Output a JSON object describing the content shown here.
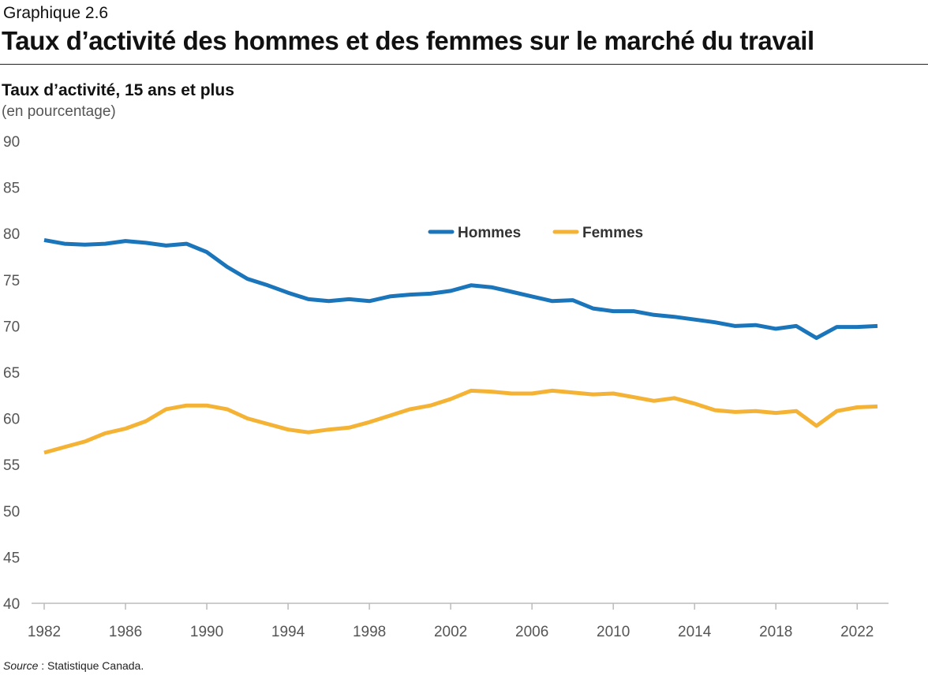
{
  "header": {
    "kicker": "Graphique 2.6",
    "title": "Taux d’activité des hommes et des femmes sur le marché du travail"
  },
  "subtitle": "Taux d’activité, 15 ans et plus",
  "unit": "(en pourcentage)",
  "source": {
    "label": "Source",
    "separator": " : ",
    "text": "Statistique Canada."
  },
  "colors": {
    "hommes": "#1b75bb",
    "femmes": "#f5b335",
    "axis": "#bbbbbb",
    "tick_text": "#555555",
    "legend_text": "#333333"
  },
  "chart_data": {
    "type": "line",
    "title": "Taux d’activité des hommes et des femmes sur le marché du travail",
    "ylabel": "Taux d’activité, 15 ans et plus (en pourcentage)",
    "xlabel": "",
    "ylim": [
      40,
      90
    ],
    "yticks": [
      40,
      45,
      50,
      55,
      60,
      65,
      70,
      75,
      80,
      85,
      90
    ],
    "xlim": [
      1982,
      2023
    ],
    "xticks": [
      1982,
      1986,
      1990,
      1994,
      1998,
      2002,
      2006,
      2010,
      2014,
      2018,
      2022
    ],
    "grid": false,
    "legend_position": "top-center",
    "x": [
      1982,
      1983,
      1984,
      1985,
      1986,
      1987,
      1988,
      1989,
      1990,
      1991,
      1992,
      1993,
      1994,
      1995,
      1996,
      1997,
      1998,
      1999,
      2000,
      2001,
      2002,
      2003,
      2004,
      2005,
      2006,
      2007,
      2008,
      2009,
      2010,
      2011,
      2012,
      2013,
      2014,
      2015,
      2016,
      2017,
      2018,
      2019,
      2020,
      2021,
      2022,
      2023
    ],
    "series": [
      {
        "name": "Hommes",
        "color": "#1b75bb",
        "values": [
          79.3,
          78.9,
          78.8,
          78.9,
          79.2,
          79.0,
          78.7,
          78.9,
          78.0,
          76.4,
          75.1,
          74.4,
          73.6,
          72.9,
          72.7,
          72.9,
          72.7,
          73.2,
          73.4,
          73.5,
          73.8,
          74.4,
          74.2,
          73.7,
          73.2,
          72.7,
          72.8,
          71.9,
          71.6,
          71.6,
          71.2,
          71.0,
          70.7,
          70.4,
          70.0,
          70.1,
          69.7,
          70.0,
          68.7,
          69.9,
          69.9,
          70.0
        ]
      },
      {
        "name": "Femmes",
        "color": "#f5b335",
        "values": [
          56.3,
          56.9,
          57.5,
          58.4,
          58.9,
          59.7,
          61.0,
          61.4,
          61.4,
          61.0,
          60.0,
          59.4,
          58.8,
          58.5,
          58.8,
          59.0,
          59.6,
          60.3,
          61.0,
          61.4,
          62.1,
          63.0,
          62.9,
          62.7,
          62.7,
          63.0,
          62.8,
          62.6,
          62.7,
          62.3,
          61.9,
          62.2,
          61.6,
          60.9,
          60.7,
          60.8,
          60.6,
          60.8,
          59.2,
          60.8,
          61.2,
          61.3
        ]
      }
    ]
  }
}
